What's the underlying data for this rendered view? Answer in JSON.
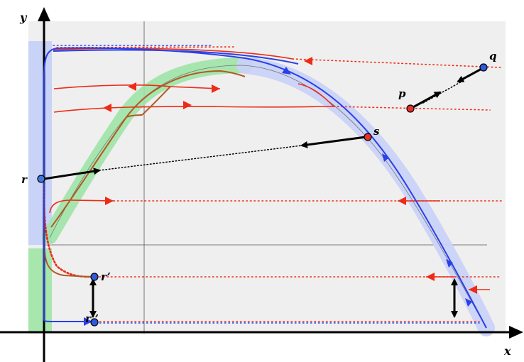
{
  "axes": {
    "x_label": "x",
    "y_label": "y"
  },
  "points": {
    "p": "p",
    "q": "q",
    "r": "r",
    "s": "s",
    "r_prime": "r’",
    "r_double_prime": "r’’"
  },
  "colors": {
    "panel": "#efefef",
    "blue_band": "#c9d2f7",
    "green_band": "#9fe3a6",
    "blue_flow": "#2a40e8",
    "red_flow": "#ee2b16",
    "brown_flow": "#b05a23",
    "point_red": "#e6302a",
    "point_blue": "#2f5ae0",
    "arrow": "#000000"
  }
}
